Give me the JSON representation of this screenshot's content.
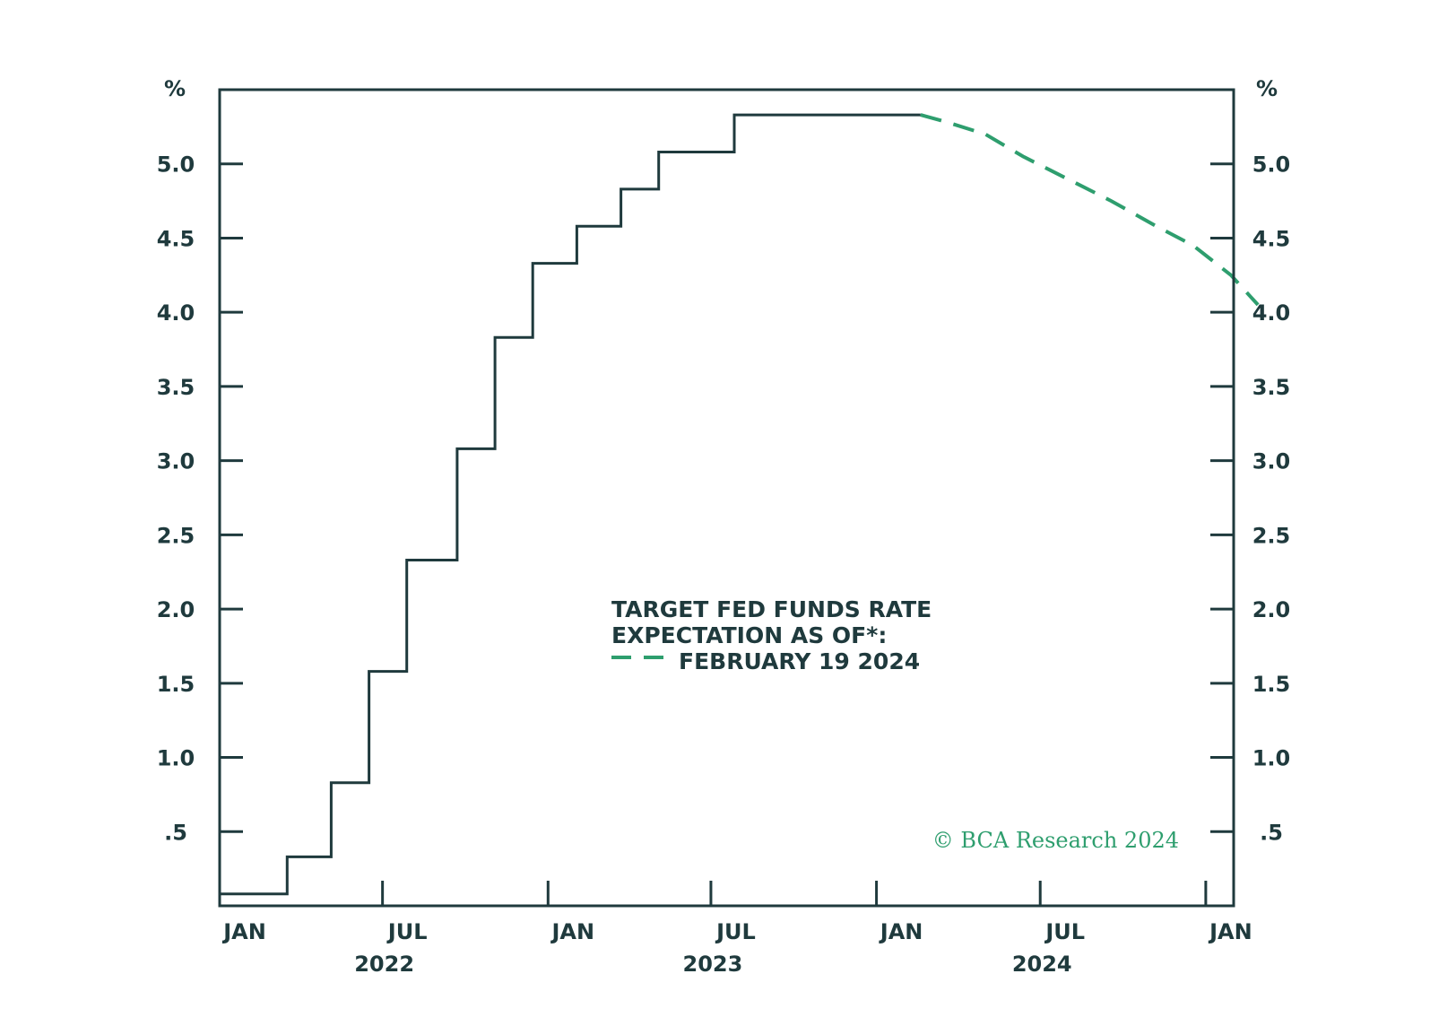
{
  "chart_data": {
    "type": "line",
    "title": "",
    "xlabel": "",
    "ylabel": "%",
    "ylabel_right": "%",
    "ylim": [
      0,
      5.5
    ],
    "x_range": [
      "2022-01",
      "2025-02"
    ],
    "y_ticks": [
      {
        "value": 0.5,
        "label": ".5"
      },
      {
        "value": 1.0,
        "label": "1.0"
      },
      {
        "value": 1.5,
        "label": "1.5"
      },
      {
        "value": 2.0,
        "label": "2.0"
      },
      {
        "value": 2.5,
        "label": "2.5"
      },
      {
        "value": 3.0,
        "label": "3.0"
      },
      {
        "value": 3.5,
        "label": "3.5"
      },
      {
        "value": 4.0,
        "label": "4.0"
      },
      {
        "value": 4.5,
        "label": "4.5"
      },
      {
        "value": 5.0,
        "label": "5.0"
      }
    ],
    "x_ticks": [
      {
        "date": "2022-01",
        "label": "JAN"
      },
      {
        "date": "2022-07",
        "label": "JUL"
      },
      {
        "date": "2023-01",
        "label": "JAN"
      },
      {
        "date": "2023-07",
        "label": "JUL"
      },
      {
        "date": "2024-01",
        "label": "JAN"
      },
      {
        "date": "2024-07",
        "label": "JUL"
      },
      {
        "date": "2025-01",
        "label": "JAN"
      }
    ],
    "year_labels": [
      {
        "date": "2022-07",
        "label": "2022"
      },
      {
        "date": "2023-07",
        "label": "2023"
      },
      {
        "date": "2024-07",
        "label": "2024"
      }
    ],
    "series": [
      {
        "name": "",
        "style": "step",
        "color": "#1f3a3d",
        "points": [
          {
            "date": "2022-01-01",
            "value": 0.08
          },
          {
            "date": "2022-03-17",
            "value": 0.33
          },
          {
            "date": "2022-05-05",
            "value": 0.83
          },
          {
            "date": "2022-06-16",
            "value": 1.58
          },
          {
            "date": "2022-07-28",
            "value": 2.33
          },
          {
            "date": "2022-09-22",
            "value": 3.08
          },
          {
            "date": "2022-11-03",
            "value": 3.83
          },
          {
            "date": "2022-12-15",
            "value": 4.33
          },
          {
            "date": "2023-02-02",
            "value": 4.58
          },
          {
            "date": "2023-03-23",
            "value": 4.83
          },
          {
            "date": "2023-05-04",
            "value": 5.08
          },
          {
            "date": "2023-07-27",
            "value": 5.33
          },
          {
            "date": "2024-02-19",
            "value": 5.33
          }
        ]
      },
      {
        "name": "FEBRUARY 19 2024",
        "style": "dashed",
        "color": "#2e9e6e",
        "points": [
          {
            "date": "2024-02-19",
            "value": 5.33
          },
          {
            "date": "2024-03-20",
            "value": 5.28
          },
          {
            "date": "2024-05-01",
            "value": 5.2
          },
          {
            "date": "2024-06-12",
            "value": 5.05
          },
          {
            "date": "2024-07-31",
            "value": 4.9
          },
          {
            "date": "2024-09-18",
            "value": 4.75
          },
          {
            "date": "2024-11-07",
            "value": 4.58
          },
          {
            "date": "2024-12-18",
            "value": 4.45
          },
          {
            "date": "2025-01-29",
            "value": 4.25
          },
          {
            "date": "2025-02-28",
            "value": 4.05
          }
        ]
      }
    ],
    "legend": {
      "placement": "center",
      "title_line1": "TARGET FED FUNDS RATE",
      "title_line2": "EXPECTATION AS OF*:",
      "entry": "FEBRUARY 19 2024"
    },
    "copyright": "© BCA Research 2024",
    "colors": {
      "axis": "#1f3a3d",
      "line": "#1f3a3d",
      "dashed": "#2e9e6e",
      "copyright": "#2e9e6e"
    }
  }
}
